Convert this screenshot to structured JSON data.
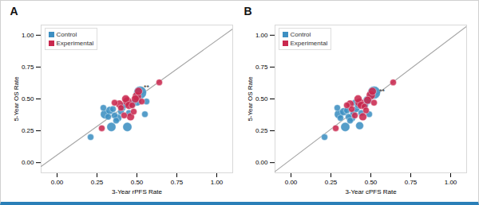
{
  "chart_data": [
    {
      "type": "scatter",
      "title": "A",
      "x_label": "3-Year rPFS Rate",
      "y_label": "5-Year OS Rate",
      "xlim": [
        -0.1,
        1.1
      ],
      "ylim": [
        -0.08,
        1.08
      ],
      "xticks": [
        {
          "value": 0,
          "label": "0.00"
        },
        {
          "value": 0.25,
          "label": "0.25"
        },
        {
          "value": 0.5,
          "label": "0.50"
        },
        {
          "value": 0.75,
          "label": "0.75"
        },
        {
          "value": 1,
          "label": "1.00"
        }
      ],
      "yticks": [
        {
          "value": 0,
          "label": "0.00"
        },
        {
          "value": 0.25,
          "label": "0.25"
        },
        {
          "value": 0.5,
          "label": "0.50"
        },
        {
          "value": 0.75,
          "label": "0.75"
        },
        {
          "value": 1,
          "label": "1.00"
        }
      ],
      "legend": "top-left",
      "series": [
        {
          "type": "line",
          "color": "#a8a8a8",
          "x": [
            -0.1,
            1.1
          ],
          "values": [
            -0.03,
            1.05
          ]
        },
        {
          "type": "scatter",
          "name": "Control",
          "color": "#3d8fc2",
          "x": [
            0.21,
            0.29,
            0.3,
            0.33,
            0.32,
            0.34,
            0.36,
            0.37,
            0.38,
            0.4,
            0.41,
            0.44,
            0.45,
            0.47,
            0.5,
            0.52,
            0.55,
            0.56,
            0.35,
            0.42
          ],
          "values": [
            0.2,
            0.43,
            0.38,
            0.41,
            0.36,
            0.28,
            0.37,
            0.33,
            0.35,
            0.4,
            0.43,
            0.28,
            0.39,
            0.46,
            0.48,
            0.55,
            0.38,
            0.48,
            0.42,
            0.45
          ],
          "sizes": [
            2,
            2,
            4,
            3,
            2,
            4,
            2,
            2,
            3,
            2,
            2,
            4,
            2,
            3,
            4,
            8,
            2,
            2,
            2,
            2
          ]
        },
        {
          "type": "scatter",
          "name": "Experimental",
          "color": "#c9284e",
          "x": [
            0.28,
            0.39,
            0.4,
            0.42,
            0.43,
            0.44,
            0.45,
            0.46,
            0.47,
            0.48,
            0.49,
            0.5,
            0.51,
            0.53,
            0.64,
            0.36
          ],
          "values": [
            0.27,
            0.46,
            0.43,
            0.37,
            0.5,
            0.48,
            0.45,
            0.36,
            0.45,
            0.4,
            0.5,
            0.52,
            0.56,
            0.48,
            0.63,
            0.47
          ],
          "sizes": [
            2,
            3,
            2,
            2,
            3,
            4,
            3,
            3,
            2,
            2,
            3,
            4,
            3,
            2,
            2,
            2
          ]
        }
      ],
      "annotations": [
        {
          "text": "**",
          "x": 0.56,
          "y": 0.59
        }
      ]
    },
    {
      "type": "scatter",
      "title": "B",
      "x_label": "3-Year cPFS Rate",
      "y_label": "5-Year OS Rate",
      "xlim": [
        -0.1,
        1.1
      ],
      "ylim": [
        -0.08,
        1.08
      ],
      "xticks": [
        {
          "value": 0,
          "label": "0.00"
        },
        {
          "value": 0.25,
          "label": "0.25"
        },
        {
          "value": 0.5,
          "label": "0.50"
        },
        {
          "value": 0.75,
          "label": "0.75"
        },
        {
          "value": 1,
          "label": "1.00"
        }
      ],
      "yticks": [
        {
          "value": 0,
          "label": "0.00"
        },
        {
          "value": 0.25,
          "label": "0.25"
        },
        {
          "value": 0.5,
          "label": "0.50"
        },
        {
          "value": 0.75,
          "label": "0.75"
        },
        {
          "value": 1,
          "label": "1.00"
        }
      ],
      "legend": "top-left",
      "series": [
        {
          "type": "line",
          "color": "#a8a8a8",
          "x": [
            -0.1,
            1.1
          ],
          "values": [
            -0.07,
            1.07
          ]
        },
        {
          "type": "scatter",
          "name": "Control",
          "color": "#3d8fc2",
          "x": [
            0.21,
            0.29,
            0.3,
            0.33,
            0.31,
            0.34,
            0.36,
            0.37,
            0.38,
            0.39,
            0.41,
            0.43,
            0.44,
            0.46,
            0.48,
            0.52,
            0.49,
            0.4,
            0.35,
            0.42
          ],
          "values": [
            0.2,
            0.43,
            0.38,
            0.4,
            0.35,
            0.28,
            0.36,
            0.33,
            0.35,
            0.39,
            0.42,
            0.29,
            0.39,
            0.45,
            0.49,
            0.55,
            0.38,
            0.47,
            0.41,
            0.45
          ],
          "sizes": [
            2,
            2,
            4,
            3,
            2,
            4,
            2,
            2,
            3,
            2,
            2,
            3,
            2,
            3,
            4,
            8,
            2,
            2,
            2,
            2
          ]
        },
        {
          "type": "scatter",
          "name": "Experimental",
          "color": "#c9284e",
          "x": [
            0.28,
            0.37,
            0.38,
            0.4,
            0.42,
            0.43,
            0.44,
            0.45,
            0.46,
            0.47,
            0.48,
            0.5,
            0.51,
            0.52,
            0.64,
            0.35
          ],
          "values": [
            0.27,
            0.46,
            0.42,
            0.37,
            0.5,
            0.47,
            0.45,
            0.36,
            0.44,
            0.41,
            0.49,
            0.53,
            0.56,
            0.47,
            0.63,
            0.45
          ],
          "sizes": [
            2,
            3,
            2,
            2,
            3,
            4,
            3,
            3,
            2,
            2,
            3,
            4,
            3,
            2,
            2,
            2
          ]
        }
      ],
      "annotations": [
        {
          "text": "**",
          "x": 0.57,
          "y": 0.56
        }
      ]
    }
  ]
}
